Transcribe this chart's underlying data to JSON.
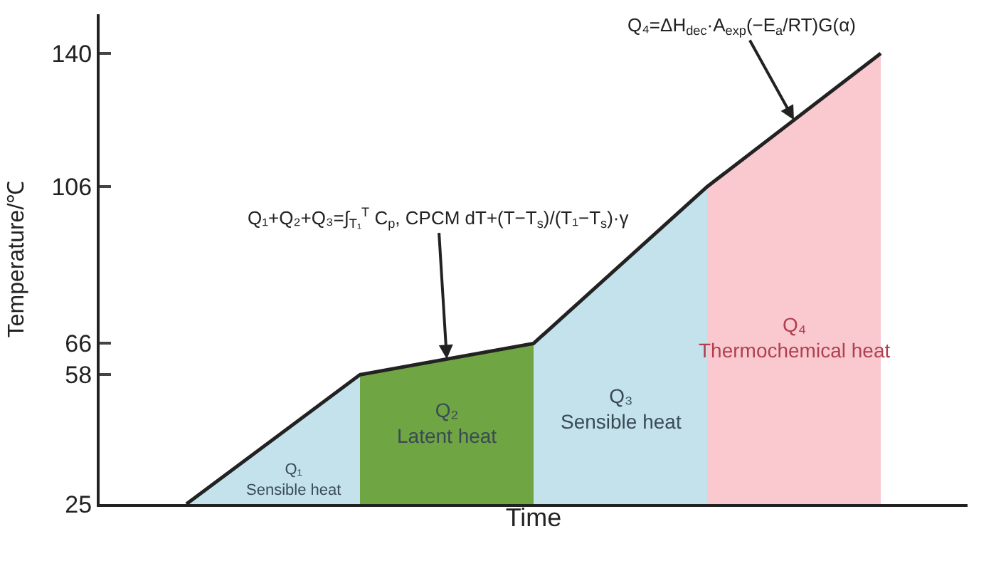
{
  "chart_data": {
    "type": "area",
    "ylabel": "Temperature/℃",
    "xlabel": "Time",
    "categories": [
      null,
      null,
      null,
      null,
      null
    ],
    "ylim": [
      25,
      150
    ],
    "yticks": [
      25,
      58,
      66,
      106,
      140
    ],
    "series": [
      {
        "name": "Q₁ Sensible heat",
        "color": "#c4e2ec",
        "values": [
          25,
          58,
          null,
          null,
          null
        ]
      },
      {
        "name": "Q₂ Latent heat",
        "color": "#6fa543",
        "values": [
          null,
          58,
          66,
          null,
          null
        ]
      },
      {
        "name": "Q₃ Sensible heat",
        "color": "#c4e2ec",
        "values": [
          null,
          null,
          66,
          106,
          null
        ]
      },
      {
        "name": "Q₄ Thermochemical heat",
        "color": "#f9c9cf",
        "values": [
          null,
          null,
          null,
          106,
          140
        ]
      },
      {
        "type": "line",
        "color": "#222222",
        "values": [
          25,
          58,
          66,
          106,
          140
        ]
      }
    ],
    "annotations": [
      "Q₁+Q₂+Q₃=∫$_{T₁}$$^{T}$ C$_{p}$, CPCM dT+(T−T$_{s}$)/(T₁−T$_{s}$)·γ",
      "Q₄=ΔH$_{dec}$·A$_{exp}$(−E$_{a}$/RT)G(α)"
    ],
    "legend": false,
    "tick_labels": "y"
  }
}
